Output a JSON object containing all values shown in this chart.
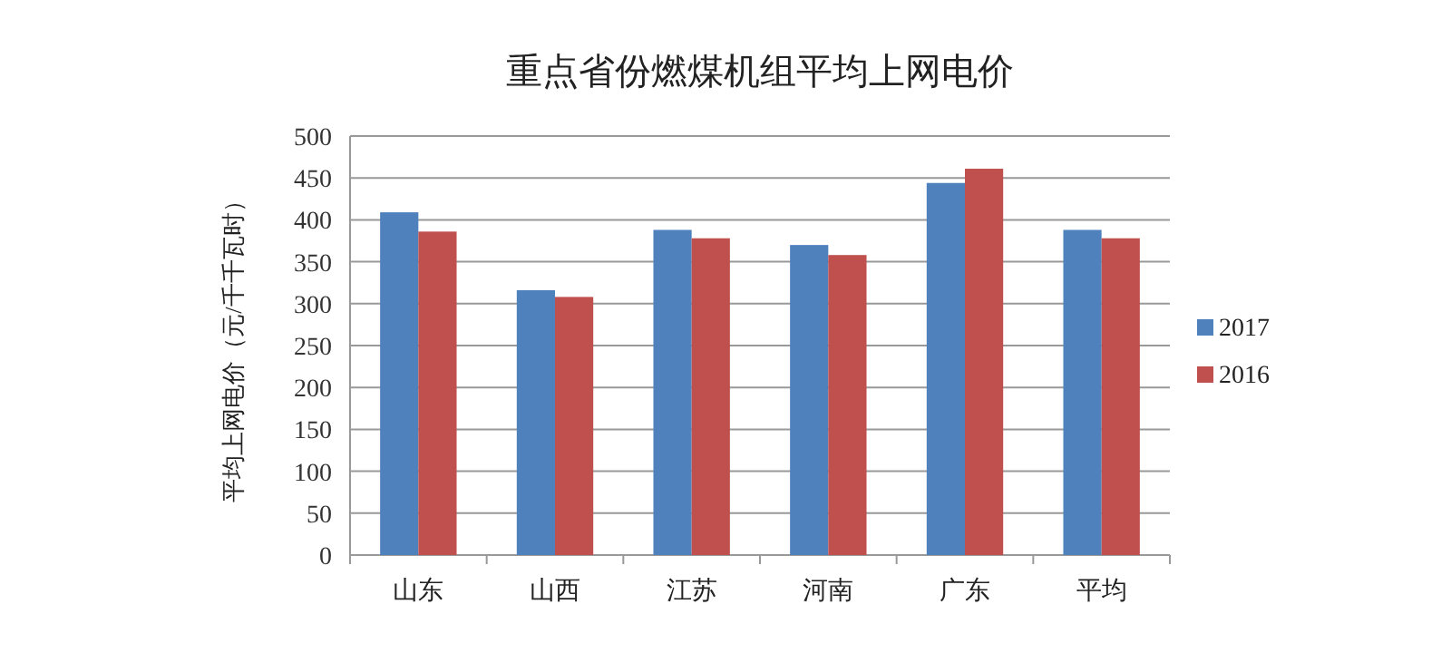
{
  "chart_data": {
    "type": "bar",
    "title": "重点省份燃煤机组平均上网电价",
    "ylabel": "平均上网电价（元/千千瓦时）",
    "categories": [
      "山东",
      "山西",
      "江苏",
      "河南",
      "广东",
      "平均"
    ],
    "series": [
      {
        "name": "2017",
        "color": "#4f81bd",
        "values": [
          409,
          316,
          388,
          370,
          444,
          388
        ]
      },
      {
        "name": "2016",
        "color": "#c0504d",
        "values": [
          386,
          308,
          378,
          358,
          461,
          378
        ]
      }
    ],
    "ylim": [
      0,
      500
    ],
    "yticks": [
      0,
      50,
      100,
      150,
      200,
      250,
      300,
      350,
      400,
      450,
      500
    ],
    "grid": "y",
    "legend": "right"
  }
}
